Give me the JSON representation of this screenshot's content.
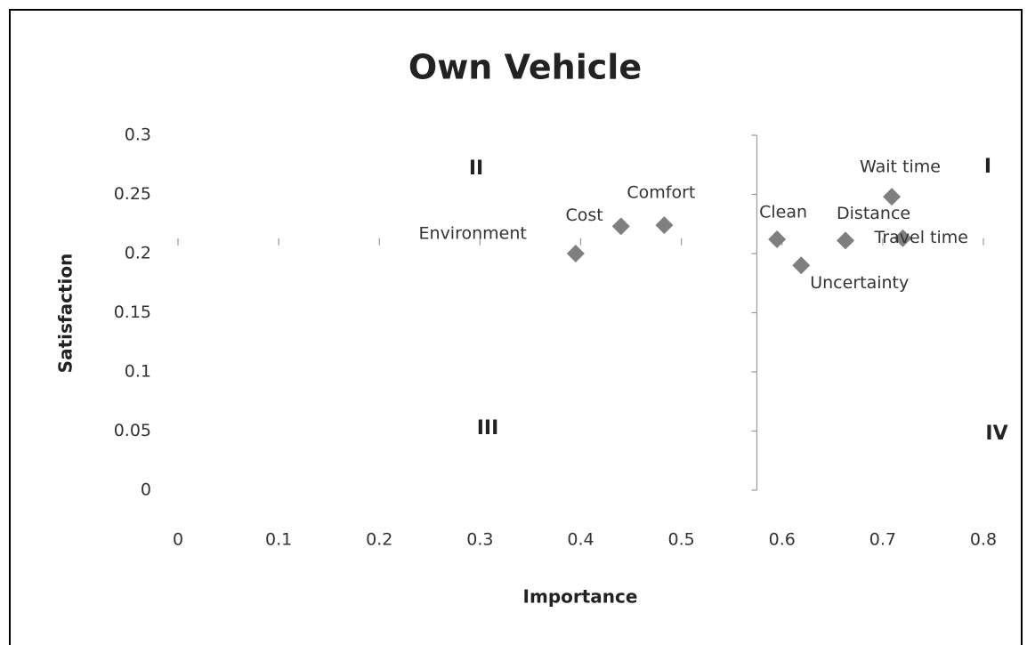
{
  "chart_data": {
    "type": "scatter",
    "title": "Own Vehicle",
    "x_label": "Importance",
    "y_label": "Satisfaction",
    "labels": [
      "Environment",
      "Cost",
      "Comfort",
      "Clean",
      "Uncertainty",
      "Distance",
      "Wait time",
      "Travel time"
    ],
    "x": [
      0.395,
      0.44,
      0.483,
      0.595,
      0.619,
      0.663,
      0.709,
      0.72
    ],
    "values": [
      0.2,
      0.223,
      0.224,
      0.212,
      0.19,
      0.211,
      0.248,
      0.213
    ],
    "color": "#7f7f7f",
    "xlim": [
      0,
      0.8
    ],
    "xticks": [
      0,
      0.1,
      0.2,
      0.3,
      0.4,
      0.5,
      0.6,
      0.7,
      0.8
    ],
    "ylim": [
      0,
      0.3
    ],
    "yticks": [
      0,
      0.05,
      0.1,
      0.15,
      0.2,
      0.25,
      0.3
    ],
    "yaxis_crosses_x_at": 0.575,
    "xaxis_crosses_y_at": 0.21,
    "annotations": [
      "I",
      "II",
      "III",
      "IV"
    ]
  }
}
